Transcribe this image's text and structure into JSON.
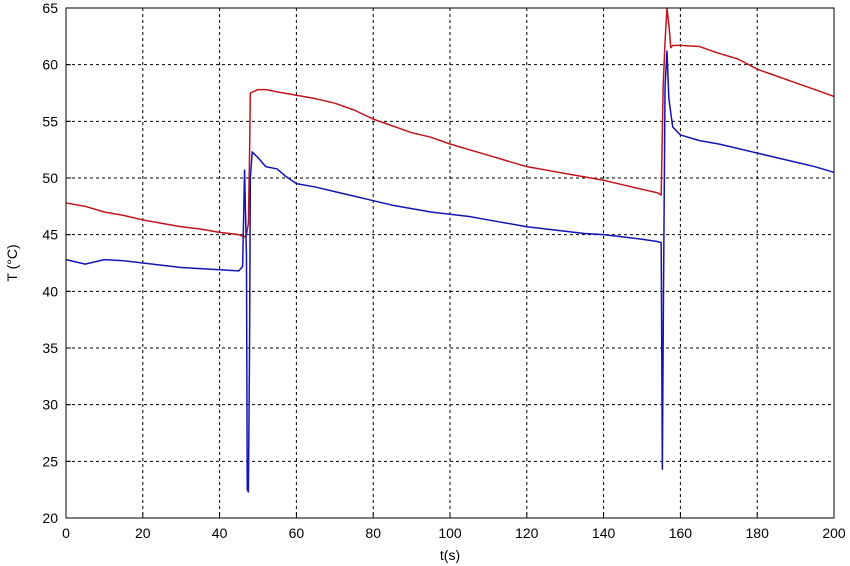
{
  "chart_data": {
    "type": "line",
    "title": "",
    "xlabel": "t(s)",
    "ylabel": "T (°C)",
    "xlim": [
      0,
      200
    ],
    "ylim": [
      20,
      65
    ],
    "xticks": [
      0,
      20,
      40,
      60,
      80,
      100,
      120,
      140,
      160,
      180,
      200
    ],
    "yticks": [
      20,
      25,
      30,
      35,
      40,
      45,
      50,
      55,
      60,
      65
    ],
    "grid": true,
    "grid_style": "dashed",
    "legend": "none",
    "series": [
      {
        "color": "#c0141e",
        "x": [
          0,
          5,
          10,
          15,
          20,
          25,
          30,
          35,
          40,
          45,
          46.5,
          47,
          47.5,
          47.8,
          48,
          50,
          52,
          55,
          60,
          65,
          70,
          75,
          80,
          85,
          90,
          95,
          100,
          105,
          110,
          115,
          120,
          125,
          130,
          135,
          140,
          145,
          150,
          154,
          155,
          155.5,
          156,
          156.5,
          157,
          157.5,
          158,
          160,
          165,
          170,
          175,
          180,
          185,
          190,
          195,
          200
        ],
        "y": [
          47.8,
          47.5,
          47.0,
          46.7,
          46.3,
          46.0,
          45.7,
          45.5,
          45.2,
          45.0,
          44.8,
          45.0,
          46.0,
          52.0,
          57.5,
          57.8,
          57.8,
          57.6,
          57.3,
          57.0,
          56.6,
          56.0,
          55.2,
          54.6,
          54.0,
          53.6,
          53.0,
          52.5,
          52.0,
          51.5,
          51.0,
          50.7,
          50.4,
          50.1,
          49.8,
          49.4,
          49.0,
          48.7,
          48.5,
          58.0,
          62.0,
          65.0,
          63.5,
          61.5,
          61.7,
          61.7,
          61.6,
          61.0,
          60.5,
          59.6,
          59.0,
          58.4,
          57.8,
          57.2
        ]
      },
      {
        "color": "#1414b4",
        "x": [
          0,
          5,
          10,
          15,
          20,
          25,
          30,
          35,
          40,
          45,
          46,
          46.5,
          47,
          47.2,
          47.5,
          47.8,
          48,
          48.5,
          50,
          52,
          55,
          57,
          60,
          65,
          70,
          75,
          80,
          85,
          90,
          95,
          100,
          105,
          110,
          115,
          120,
          125,
          130,
          135,
          140,
          145,
          150,
          154,
          155,
          155.3,
          155.6,
          156,
          156.5,
          157,
          158,
          160,
          165,
          170,
          175,
          180,
          185,
          190,
          195,
          200
        ],
        "y": [
          42.8,
          42.4,
          42.8,
          42.7,
          42.5,
          42.3,
          42.1,
          42.0,
          41.9,
          41.8,
          42.2,
          50.7,
          43.0,
          22.5,
          22.3,
          35.0,
          50.0,
          52.3,
          51.8,
          51.0,
          50.8,
          50.2,
          49.5,
          49.2,
          48.8,
          48.4,
          48.0,
          47.6,
          47.3,
          47.0,
          46.8,
          46.6,
          46.3,
          46.0,
          45.7,
          45.5,
          45.3,
          45.1,
          45.0,
          44.8,
          44.6,
          44.4,
          44.3,
          24.3,
          40.0,
          58.0,
          61.2,
          57.0,
          54.5,
          53.8,
          53.3,
          53.0,
          52.6,
          52.2,
          51.8,
          51.4,
          51.0,
          50.5
        ]
      }
    ]
  }
}
